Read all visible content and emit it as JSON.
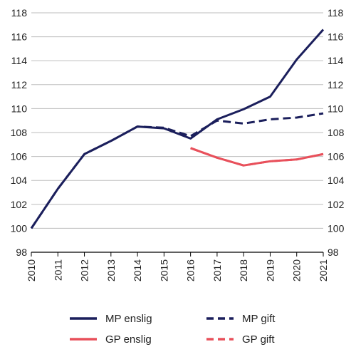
{
  "chart_data": {
    "type": "line",
    "title": "",
    "xlabel": "",
    "ylabel": "",
    "x": [
      2010,
      2011,
      2012,
      2013,
      2014,
      2015,
      2016,
      2017,
      2018,
      2019,
      2020,
      2021
    ],
    "x_tick_labels": [
      "2010",
      "2011",
      "2012",
      "2013",
      "2014",
      "2015",
      "2016",
      "2017",
      "2018",
      "2019",
      "2020",
      "2021"
    ],
    "ylim": [
      98,
      118
    ],
    "y_ticks": [
      98,
      100,
      102,
      104,
      106,
      108,
      110,
      112,
      114,
      116,
      118
    ],
    "y_tick_labels": [
      "98",
      "100",
      "102",
      "104",
      "106",
      "108",
      "110",
      "112",
      "114",
      "116",
      "118"
    ],
    "grid": "horizontal",
    "right_axis_mirror": true,
    "legend_position": "bottom",
    "series": [
      {
        "name": "MP enslig",
        "color": "#1b1f5c",
        "style": "solid",
        "x": [
          2010,
          2011,
          2012,
          2013,
          2014,
          2015,
          2016,
          2017,
          2018,
          2019,
          2020,
          2021
        ],
        "values": [
          100.0,
          103.3,
          106.2,
          107.3,
          108.5,
          108.35,
          107.5,
          109.1,
          109.95,
          111.0,
          114.1,
          116.6
        ]
      },
      {
        "name": "MP gift",
        "color": "#1b1f5c",
        "style": "dashed",
        "x": [
          2010,
          2011,
          2012,
          2013,
          2014,
          2015,
          2016,
          2017,
          2018,
          2019,
          2020,
          2021
        ],
        "values": [
          100.0,
          103.3,
          106.2,
          107.3,
          108.5,
          108.4,
          107.7,
          109.0,
          108.75,
          109.1,
          109.25,
          109.6
        ]
      },
      {
        "name": "GP enslig",
        "color": "#e8505b",
        "style": "solid",
        "x": [
          2016,
          2017,
          2018,
          2019,
          2020,
          2021
        ],
        "values": [
          106.7,
          105.9,
          105.25,
          105.6,
          105.75,
          106.2
        ]
      },
      {
        "name": "GP gift",
        "color": "#e8505b",
        "style": "dashed",
        "x": [
          2016,
          2017,
          2018,
          2019,
          2020,
          2021
        ],
        "values": [
          106.7,
          105.9,
          105.25,
          105.6,
          105.75,
          106.2
        ]
      }
    ]
  }
}
